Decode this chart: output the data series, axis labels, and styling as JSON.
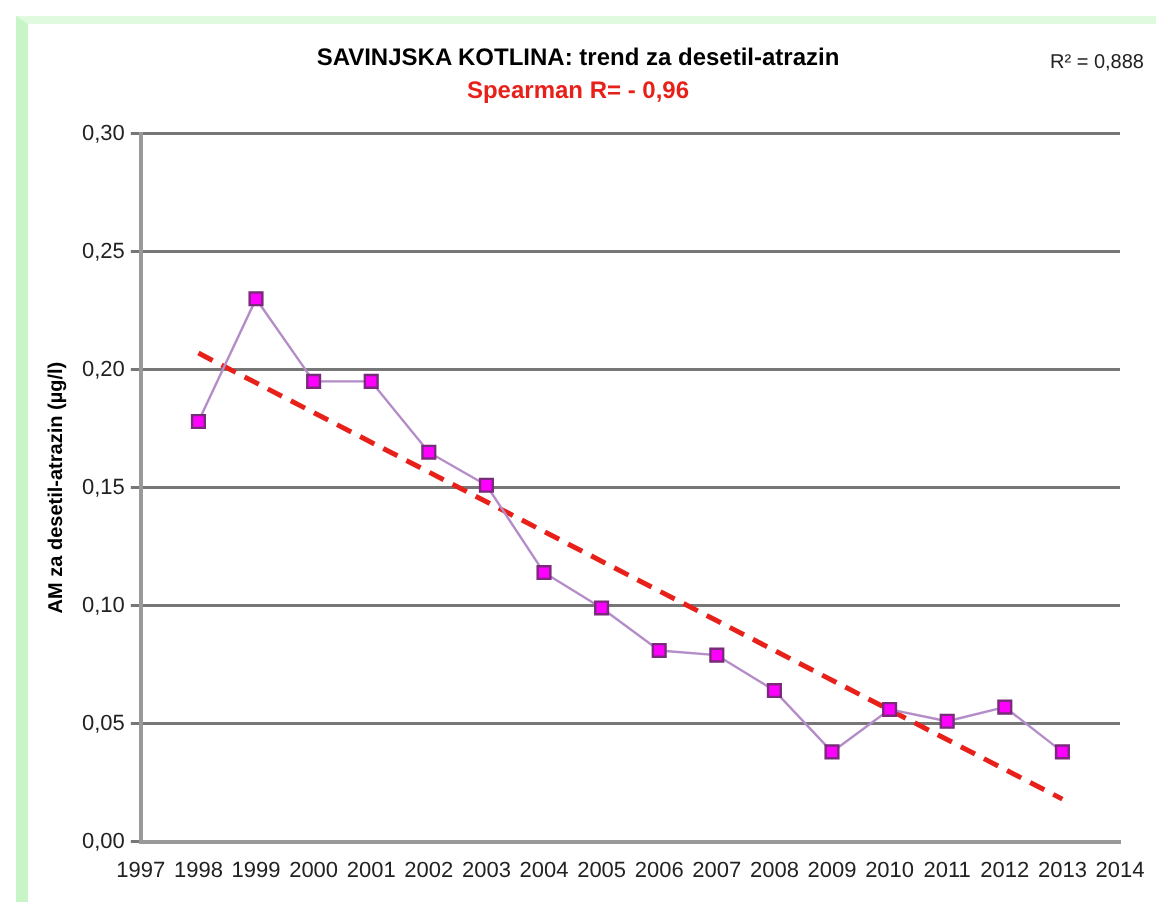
{
  "chart_data": {
    "type": "line",
    "title": "SAVINJSKA KOTLINA: trend za desetil-atrazin",
    "subtitle": "Spearman R= - 0,96",
    "ylabel": "AM za desetil-atrazin (µg/l)",
    "annotations": [
      "R² = 0,888"
    ],
    "x": [
      1998,
      1999,
      2000,
      2001,
      2002,
      2003,
      2004,
      2005,
      2006,
      2007,
      2008,
      2009,
      2010,
      2011,
      2012,
      2013
    ],
    "series": [
      {
        "color": "#ff00ff",
        "marker": "square",
        "values": [
          0.178,
          0.23,
          0.195,
          0.195,
          0.165,
          0.151,
          0.114,
          0.099,
          0.081,
          0.079,
          0.064,
          0.038,
          0.056,
          0.051,
          0.057,
          0.038
        ]
      },
      {
        "color": "#e8201a",
        "marker": "none",
        "line_style": "dashed",
        "x": [
          1998,
          2013
        ],
        "values": [
          0.207,
          0.018
        ]
      }
    ],
    "xlim": [
      1997,
      2014
    ],
    "xticks": [
      1997,
      1998,
      1999,
      2000,
      2001,
      2002,
      2003,
      2004,
      2005,
      2006,
      2007,
      2008,
      2009,
      2010,
      2011,
      2012,
      2013,
      2014
    ],
    "ylim": [
      0,
      0.3
    ],
    "yticks": [
      {
        "value": 0,
        "label": "0,00"
      },
      {
        "value": 0.05,
        "label": "0,05"
      },
      {
        "value": 0.1,
        "label": "0,10"
      },
      {
        "value": 0.15,
        "label": "0,15"
      },
      {
        "value": 0.2,
        "label": "0,20"
      },
      {
        "value": 0.25,
        "label": "0,25"
      },
      {
        "value": 0.3,
        "label": "0,30"
      }
    ],
    "grid": "y",
    "legend": false
  }
}
